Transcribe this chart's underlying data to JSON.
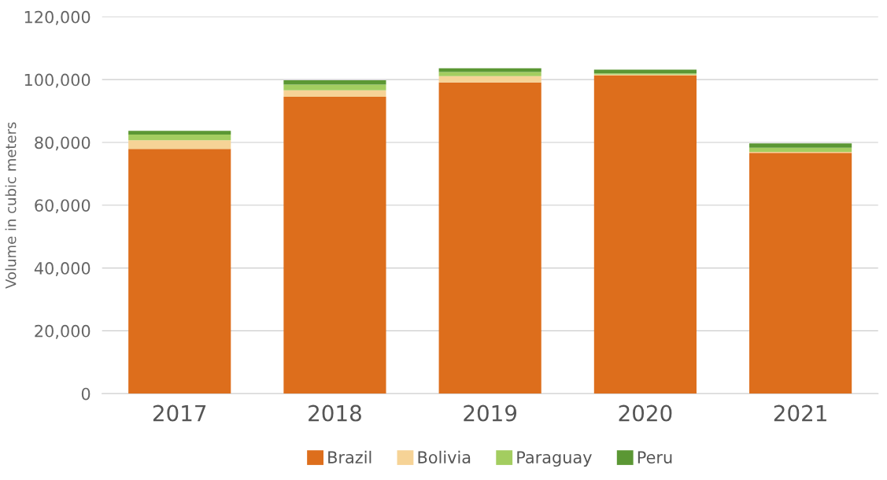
{
  "chart_data": {
    "type": "bar",
    "stacked": true,
    "ylabel": "Volume in cubic meters",
    "categories": [
      "2017",
      "2018",
      "2019",
      "2020",
      "2021"
    ],
    "series": [
      {
        "name": "Brazil",
        "color": "#dd6e1c",
        "values": [
          77900,
          94500,
          99100,
          101300,
          76700
        ]
      },
      {
        "name": "Bolivia",
        "color": "#f6d396",
        "values": [
          2800,
          2100,
          2000,
          300,
          300
        ]
      },
      {
        "name": "Paraguay",
        "color": "#a3cd60",
        "values": [
          1800,
          1800,
          1300,
          400,
          1300
        ]
      },
      {
        "name": "Peru",
        "color": "#5b9734",
        "values": [
          1200,
          1400,
          1200,
          1200,
          1400
        ]
      }
    ],
    "ylim": [
      0,
      120000
    ],
    "yticks": [
      0,
      {
        "value": 20000,
        "label": "20,000"
      },
      {
        "value": 40000,
        "label": "40,000"
      },
      {
        "value": 60000,
        "label": "60,000"
      },
      {
        "value": 80000,
        "label": "80,000"
      },
      {
        "value": 100000,
        "label": "100,000"
      },
      {
        "value": 120000,
        "label": "120,000"
      }
    ],
    "grid": "y",
    "legend": "bottom"
  }
}
